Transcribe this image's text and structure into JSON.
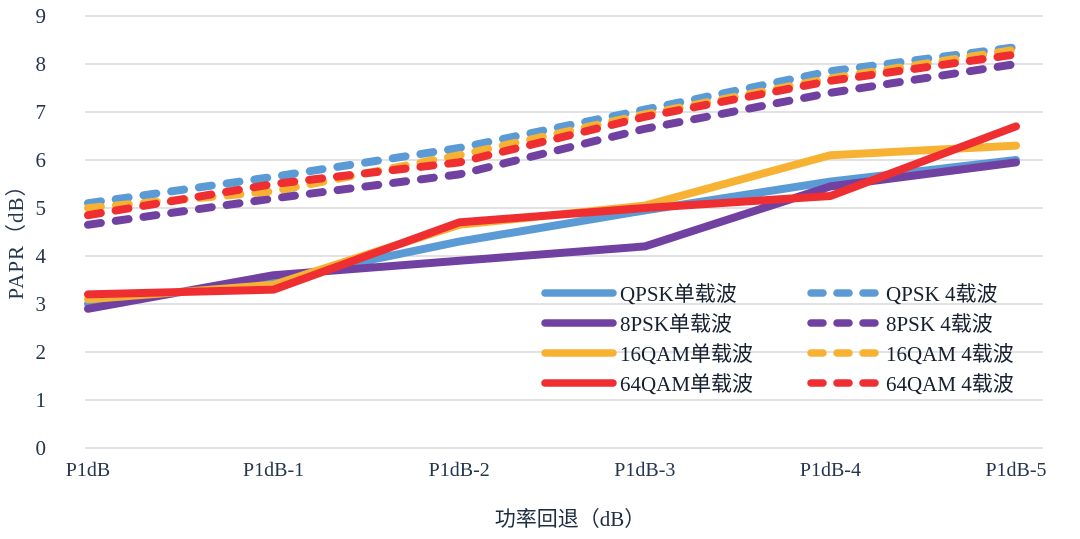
{
  "chart_data": {
    "type": "line",
    "title": "",
    "xlabel": "功率回退（dB）",
    "ylabel": "PAPR（dB）",
    "ylim": [
      0,
      9
    ],
    "yticks": [
      0,
      1,
      2,
      3,
      4,
      5,
      6,
      7,
      8,
      9
    ],
    "grid": true,
    "legend_position": "inside-bottom-right",
    "categories": [
      "P1dB",
      "P1dB-1",
      "P1dB-2",
      "P1dB-3",
      "P1dB-4",
      "P1dB-5"
    ],
    "series": [
      {
        "name": "QPSK单载波",
        "color": "#5B9BD5",
        "style": "solid",
        "values": [
          3.0,
          3.5,
          4.3,
          4.95,
          5.55,
          6.0
        ]
      },
      {
        "name": "8PSK单载波",
        "color": "#7141A1",
        "style": "solid",
        "values": [
          2.9,
          3.6,
          3.9,
          4.2,
          5.45,
          5.95
        ]
      },
      {
        "name": "16QAM单载波",
        "color": "#F7B234",
        "style": "solid",
        "values": [
          3.1,
          3.4,
          4.65,
          5.05,
          6.1,
          6.3
        ]
      },
      {
        "name": "64QAM单载波",
        "color": "#EE2E31",
        "style": "solid",
        "values": [
          3.2,
          3.3,
          4.7,
          5.0,
          5.25,
          6.7
        ]
      },
      {
        "name": "QPSK 4载波",
        "color": "#5B9BD5",
        "style": "dashed",
        "values": [
          5.1,
          5.65,
          6.25,
          7.05,
          7.85,
          8.35
        ]
      },
      {
        "name": "8PSK 4载波",
        "color": "#7141A1",
        "style": "dashed",
        "values": [
          4.65,
          5.2,
          5.7,
          6.65,
          7.4,
          8.0
        ]
      },
      {
        "name": "16QAM 4载波",
        "color": "#F7B234",
        "style": "dashed",
        "values": [
          5.0,
          5.35,
          6.1,
          6.95,
          7.7,
          8.3
        ]
      },
      {
        "name": "64QAM 4载波",
        "color": "#EE2E31",
        "style": "dashed",
        "values": [
          4.85,
          5.5,
          5.95,
          6.9,
          7.65,
          8.2
        ]
      }
    ],
    "legend_columns": [
      [
        "QPSK单载波",
        "8PSK单载波",
        "16QAM单载波",
        "64QAM单载波"
      ],
      [
        "QPSK 4载波",
        "8PSK 4载波",
        "16QAM 4载波",
        "64QAM 4载波"
      ]
    ],
    "gridline_color": "#D9D9D9"
  }
}
